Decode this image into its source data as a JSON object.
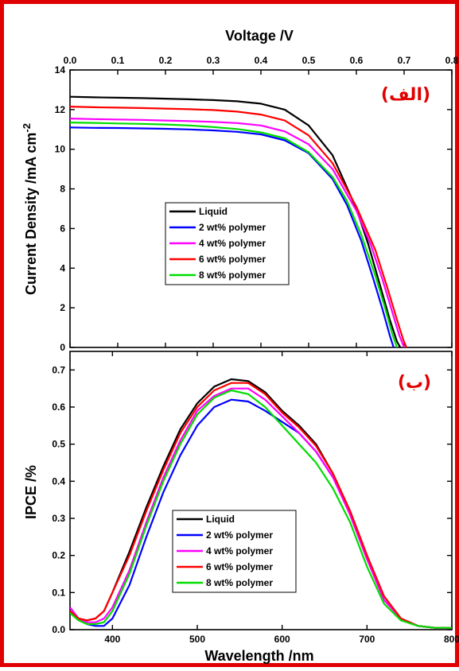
{
  "figure": {
    "border_color": "#e00000"
  },
  "chart_data": [
    {
      "type": "line",
      "panel_label": "(الف)",
      "xlabel": "Voltage /V",
      "ylabel": "Current Density /mA cm",
      "ylabel_superscript": "-2",
      "xlim": [
        0.0,
        0.8
      ],
      "ylim": [
        0,
        14
      ],
      "x_ticks": [
        "0.0",
        "0.1",
        "0.2",
        "0.3",
        "0.4",
        "0.5",
        "0.6",
        "0.7",
        "0.8"
      ],
      "y_ticks": [
        "0",
        "2",
        "4",
        "6",
        "8",
        "10",
        "12",
        "14"
      ],
      "x_axis_position": "top",
      "grid": false,
      "legend_position": "center-left",
      "series": [
        {
          "name": "Liquid",
          "color": "#000000",
          "x": [
            0,
            0.05,
            0.1,
            0.15,
            0.2,
            0.25,
            0.3,
            0.35,
            0.4,
            0.45,
            0.5,
            0.55,
            0.6,
            0.625,
            0.65,
            0.67,
            0.685,
            0.692
          ],
          "y": [
            12.65,
            12.62,
            12.6,
            12.58,
            12.55,
            12.52,
            12.48,
            12.42,
            12.3,
            12.0,
            11.2,
            9.7,
            7.0,
            5.2,
            3.1,
            1.4,
            0.3,
            0
          ]
        },
        {
          "name": "2 wt% polymer",
          "color": "#0000ff",
          "x": [
            0,
            0.05,
            0.1,
            0.15,
            0.2,
            0.25,
            0.3,
            0.35,
            0.4,
            0.45,
            0.5,
            0.55,
            0.58,
            0.61,
            0.635,
            0.655,
            0.67,
            0.678
          ],
          "y": [
            11.1,
            11.08,
            11.07,
            11.05,
            11.03,
            11.0,
            10.95,
            10.88,
            10.75,
            10.45,
            9.8,
            8.5,
            7.2,
            5.4,
            3.5,
            1.9,
            0.6,
            0
          ]
        },
        {
          "name": "4 wt% polymer",
          "color": "#ff00ff",
          "x": [
            0,
            0.05,
            0.1,
            0.15,
            0.2,
            0.25,
            0.3,
            0.35,
            0.4,
            0.45,
            0.5,
            0.55,
            0.6,
            0.63,
            0.655,
            0.675,
            0.69,
            0.7
          ],
          "y": [
            11.55,
            11.52,
            11.5,
            11.48,
            11.45,
            11.42,
            11.38,
            11.32,
            11.2,
            10.9,
            10.25,
            9.0,
            6.9,
            5.2,
            3.4,
            1.8,
            0.6,
            0
          ]
        },
        {
          "name": "6 wt% polymer",
          "color": "#ff0000",
          "x": [
            0,
            0.05,
            0.1,
            0.15,
            0.2,
            0.25,
            0.3,
            0.35,
            0.4,
            0.45,
            0.5,
            0.55,
            0.6,
            0.64,
            0.665,
            0.685,
            0.698,
            0.705
          ],
          "y": [
            12.15,
            12.12,
            12.1,
            12.08,
            12.05,
            12.02,
            11.98,
            11.9,
            11.75,
            11.45,
            10.7,
            9.3,
            7.1,
            4.9,
            3.0,
            1.4,
            0.4,
            0
          ]
        },
        {
          "name": "8 wt% polymer",
          "color": "#00dd00",
          "x": [
            0,
            0.05,
            0.1,
            0.15,
            0.2,
            0.25,
            0.3,
            0.35,
            0.4,
            0.45,
            0.5,
            0.55,
            0.58,
            0.61,
            0.64,
            0.66,
            0.675,
            0.685
          ],
          "y": [
            11.35,
            11.33,
            11.3,
            11.28,
            11.25,
            11.2,
            11.12,
            11.02,
            10.85,
            10.55,
            9.85,
            8.6,
            7.4,
            5.7,
            3.6,
            2.0,
            0.7,
            0
          ]
        }
      ]
    },
    {
      "type": "line",
      "panel_label": "(ب)",
      "xlabel": "Wavelength /nm",
      "ylabel": "IPCE /%",
      "xlim": [
        350,
        800
      ],
      "ylim": [
        0.0,
        0.75
      ],
      "x_ticks": [
        "400",
        "500",
        "600",
        "700",
        "800"
      ],
      "y_ticks": [
        "0.0",
        "0.1",
        "0.2",
        "0.3",
        "0.4",
        "0.5",
        "0.6",
        "0.7"
      ],
      "grid": false,
      "legend_position": "bottom-center",
      "series": [
        {
          "name": "Liquid",
          "color": "#000000",
          "x": [
            350,
            360,
            370,
            380,
            390,
            400,
            420,
            440,
            460,
            480,
            500,
            520,
            540,
            560,
            580,
            600,
            620,
            640,
            660,
            680,
            700,
            720,
            740,
            760,
            780,
            800
          ],
          "y": [
            0.05,
            0.03,
            0.025,
            0.03,
            0.05,
            0.1,
            0.21,
            0.33,
            0.44,
            0.54,
            0.61,
            0.655,
            0.675,
            0.67,
            0.64,
            0.59,
            0.55,
            0.5,
            0.42,
            0.32,
            0.2,
            0.09,
            0.03,
            0.01,
            0.005,
            0.005
          ]
        },
        {
          "name": "2 wt% polymer",
          "color": "#0000ff",
          "x": [
            350,
            360,
            370,
            380,
            390,
            400,
            420,
            440,
            460,
            480,
            500,
            520,
            540,
            560,
            580,
            600,
            620,
            640,
            660,
            680,
            700,
            720,
            740,
            760,
            780,
            800
          ],
          "y": [
            0.06,
            0.03,
            0.015,
            0.01,
            0.01,
            0.03,
            0.12,
            0.25,
            0.37,
            0.47,
            0.55,
            0.6,
            0.62,
            0.615,
            0.59,
            0.56,
            0.53,
            0.48,
            0.41,
            0.32,
            0.2,
            0.09,
            0.03,
            0.01,
            0.005,
            0.005
          ]
        },
        {
          "name": "4 wt% polymer",
          "color": "#ff00ff",
          "x": [
            350,
            360,
            370,
            380,
            390,
            400,
            420,
            440,
            460,
            480,
            500,
            520,
            540,
            560,
            580,
            600,
            620,
            640,
            660,
            680,
            700,
            720,
            740,
            760,
            780,
            800
          ],
          "y": [
            0.06,
            0.03,
            0.02,
            0.02,
            0.03,
            0.06,
            0.16,
            0.29,
            0.41,
            0.51,
            0.59,
            0.63,
            0.65,
            0.65,
            0.62,
            0.575,
            0.53,
            0.48,
            0.41,
            0.31,
            0.19,
            0.08,
            0.03,
            0.01,
            0.005,
            0.005
          ]
        },
        {
          "name": "6 wt% polymer",
          "color": "#ff0000",
          "x": [
            350,
            360,
            370,
            380,
            390,
            400,
            420,
            440,
            460,
            480,
            500,
            520,
            540,
            560,
            580,
            600,
            620,
            640,
            660,
            680,
            700,
            720,
            740,
            760,
            780,
            800
          ],
          "y": [
            0.05,
            0.03,
            0.025,
            0.03,
            0.05,
            0.1,
            0.2,
            0.32,
            0.43,
            0.53,
            0.6,
            0.645,
            0.665,
            0.665,
            0.635,
            0.585,
            0.545,
            0.495,
            0.42,
            0.32,
            0.2,
            0.09,
            0.03,
            0.01,
            0.005,
            0.005
          ]
        },
        {
          "name": "8 wt% polymer",
          "color": "#00dd00",
          "x": [
            350,
            360,
            370,
            380,
            390,
            400,
            420,
            440,
            460,
            480,
            500,
            520,
            540,
            560,
            580,
            600,
            620,
            640,
            660,
            680,
            700,
            720,
            740,
            760,
            780,
            800
          ],
          "y": [
            0.045,
            0.025,
            0.015,
            0.015,
            0.02,
            0.05,
            0.15,
            0.28,
            0.4,
            0.5,
            0.58,
            0.625,
            0.645,
            0.635,
            0.6,
            0.55,
            0.5,
            0.45,
            0.38,
            0.29,
            0.17,
            0.07,
            0.025,
            0.01,
            0.005,
            0.005
          ]
        }
      ]
    }
  ]
}
